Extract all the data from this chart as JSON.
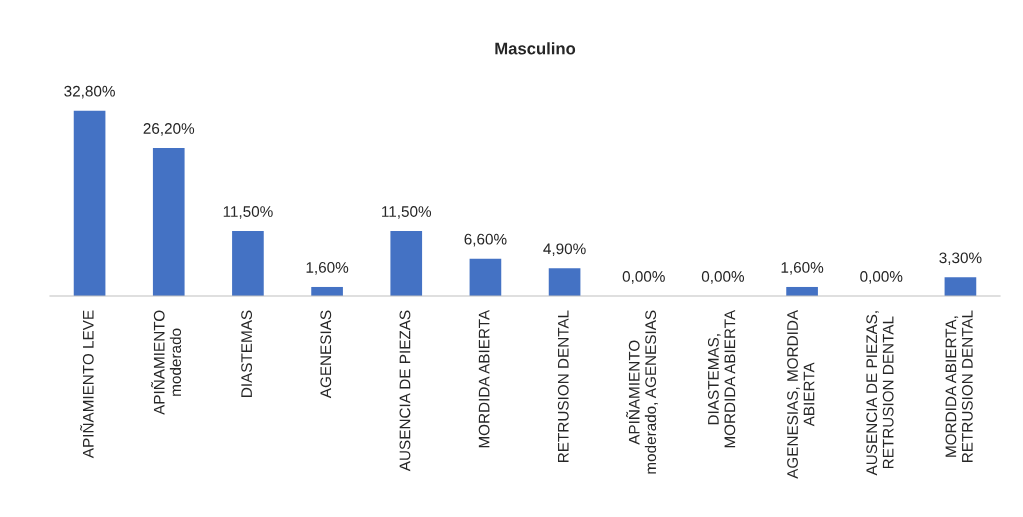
{
  "chart_data": {
    "type": "bar",
    "title": "Masculino",
    "categories": [
      "APIÑAMIENTO LEVE",
      "APIÑAMIENTO\nmoderado",
      "DIASTEMAS",
      "AGENESIAS",
      "AUSENCIA DE PIEZAS",
      "MORDIDA ABIERTA",
      "RETRUSION DENTAL",
      "APIÑAMIENTO\nmoderado, AGENESIAS",
      "DIASTEMAS,\nMORDIDA ABIERTA",
      "AGENESIAS, MORDIDA\nABIERTA",
      "AUSENCIA DE PIEZAS,\nRETRUSION DENTAL",
      "MORDIDA ABIERTA,\nRETRUSION DENTAL"
    ],
    "values": [
      32.8,
      26.2,
      11.5,
      1.6,
      11.5,
      6.6,
      4.9,
      0.0,
      0.0,
      1.6,
      0.0,
      3.3
    ],
    "value_labels": [
      "32,80%",
      "26,20%",
      "11,50%",
      "1,60%",
      "11,50%",
      "6,60%",
      "4,90%",
      "0,00%",
      "0,00%",
      "1,60%",
      "0,00%",
      "3,30%"
    ],
    "color": "#4472c4",
    "grid": false,
    "legend": false
  }
}
